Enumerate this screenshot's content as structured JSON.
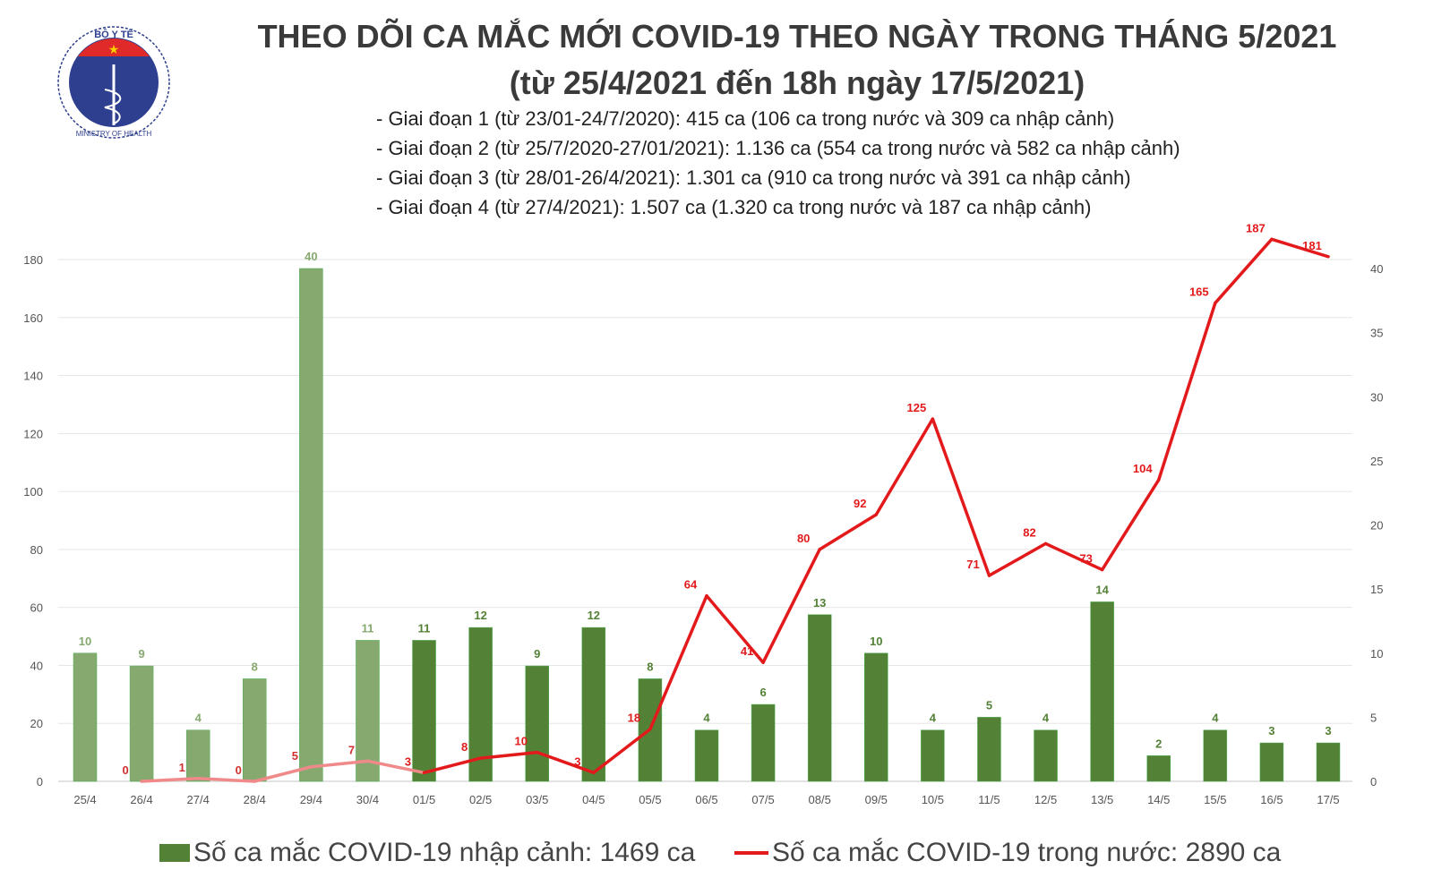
{
  "logo": {
    "top_text": "BỘ Y TẾ",
    "bottom_text": "MINISTRY OF HEALTH"
  },
  "title": "THEO DÕI CA MẮC MỚI COVID-19 THEO NGÀY TRONG THÁNG 5/2021",
  "subtitle": "(từ 25/4/2021 đến 18h ngày 17/5/2021)",
  "stages": [
    "- Giai đoạn 1 (từ 23/01-24/7/2020): 415 ca (106 ca trong nước và 309 ca nhập cảnh)",
    "- Giai đoạn 2 (từ 25/7/2020-27/01/2021): 1.136 ca (554 ca trong nước và 582 ca nhập cảnh)",
    "- Giai đoạn 3 (từ 28/01-26/4/2021): 1.301 ca (910 ca trong nước và 391 ca nhập cảnh)",
    "- Giai đoạn 4 (từ 27/4/2021): 1.507 ca (1.320 ca trong nước và 187 ca nhập cảnh)"
  ],
  "chart_data": {
    "type": "bar+line",
    "categories": [
      "25/4",
      "26/4",
      "27/4",
      "28/4",
      "29/4",
      "30/4",
      "01/5",
      "02/5",
      "03/5",
      "04/5",
      "05/5",
      "06/5",
      "07/5",
      "08/5",
      "09/5",
      "10/5",
      "11/5",
      "12/5",
      "13/5",
      "14/5",
      "15/5",
      "16/5",
      "17/5"
    ],
    "series": [
      {
        "name": "Số ca mắc COVID-19 nhập cảnh: 1469 ca",
        "type": "bar",
        "axis": "right",
        "color": "#538135",
        "faded_color": "#86a96f",
        "values": [
          10,
          9,
          4,
          8,
          40,
          11,
          11,
          12,
          9,
          12,
          8,
          4,
          6,
          13,
          10,
          4,
          5,
          4,
          14,
          2,
          4,
          3,
          3
        ]
      },
      {
        "name": "Số ca mắc COVID-19 trong nước: 2890 ca",
        "type": "line",
        "axis": "left",
        "color": "#e31a1c",
        "faded_color": "#f08a8a",
        "values": [
          null,
          0,
          1,
          0,
          5,
          7,
          3,
          8,
          10,
          3,
          18,
          64,
          41,
          80,
          92,
          125,
          71,
          82,
          73,
          104,
          165,
          187,
          181
        ]
      }
    ],
    "faded_through": "30/4",
    "left_axis": {
      "ticks": [
        0,
        20,
        40,
        60,
        80,
        100,
        120,
        140,
        160,
        180
      ]
    },
    "right_axis": {
      "ticks": [
        0,
        5,
        10,
        15,
        20,
        25,
        30,
        35,
        40
      ]
    },
    "legend_position": "bottom",
    "grid": true
  }
}
